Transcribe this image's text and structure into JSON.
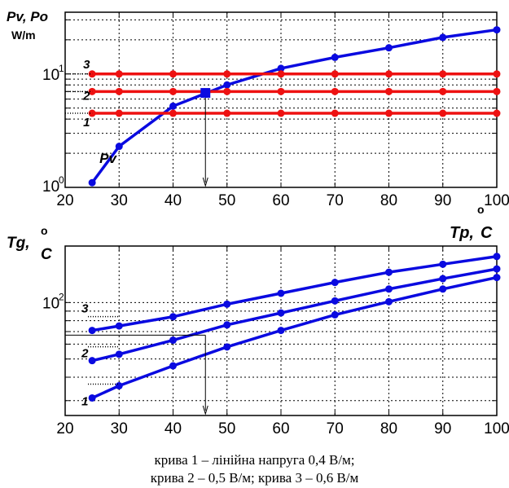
{
  "caption": {
    "line1": "крива 1 – лінійна напруга 0,4 В/м;",
    "line2": "крива 2 – 0,5 В/м; крива 3 – 0,6 В/м"
  },
  "colors": {
    "red": "#ee1111",
    "blue": "#0a0ae0",
    "axis": "#000000",
    "grid": "#000000"
  },
  "chart_data": [
    {
      "type": "line",
      "ylabel": "Pv, Po",
      "yunit": "W/m",
      "xlabel": "Tp, °C",
      "xlabel_main": "Tp,",
      "xlabel_unit": "C",
      "yscale": "log",
      "xlim": [
        20,
        100
      ],
      "ylim": [
        1,
        35
      ],
      "x_ticks": [
        20,
        30,
        40,
        50,
        60,
        70,
        80,
        90,
        100
      ],
      "y_tick_labels": [
        {
          "base": "10",
          "exp": "0",
          "value": 1
        },
        {
          "base": "10",
          "exp": "1",
          "value": 10
        }
      ],
      "grid": true,
      "series": [
        {
          "name": "Pv",
          "color": "#0a0ae0",
          "x": [
            25,
            30,
            40,
            50,
            60,
            70,
            80,
            90,
            100
          ],
          "y": [
            1.1,
            2.3,
            5.2,
            8.0,
            11.2,
            14.0,
            17.0,
            21.0,
            24.5
          ]
        },
        {
          "name": "1",
          "color": "#ee1111",
          "x": [
            25,
            30,
            40,
            50,
            60,
            70,
            80,
            90,
            100
          ],
          "y": [
            4.5,
            4.5,
            4.5,
            4.5,
            4.5,
            4.5,
            4.5,
            4.5,
            4.5
          ]
        },
        {
          "name": "2",
          "color": "#ee1111",
          "x": [
            25,
            30,
            40,
            50,
            60,
            70,
            80,
            90,
            100
          ],
          "y": [
            7.0,
            7.0,
            7.0,
            7.0,
            7.0,
            7.0,
            7.0,
            7.0,
            7.0
          ]
        },
        {
          "name": "3",
          "color": "#ee1111",
          "x": [
            25,
            30,
            40,
            50,
            60,
            70,
            80,
            90,
            100
          ],
          "y": [
            10.0,
            10.0,
            10.0,
            10.0,
            10.0,
            10.0,
            10.0,
            10.0,
            10.0
          ]
        }
      ],
      "marker": {
        "x": 46,
        "y": 6.8
      },
      "annotations": [
        "Pv",
        "1",
        "2",
        "3"
      ]
    },
    {
      "type": "line",
      "ylabel": "Tg,",
      "ylabel_unit": "C",
      "yscale": "log",
      "xlim": [
        20,
        100
      ],
      "ylim": [
        25,
        200
      ],
      "x_ticks": [
        20,
        30,
        40,
        50,
        60,
        70,
        80,
        90,
        100
      ],
      "y_tick_labels": [
        {
          "base": "10",
          "exp": "2",
          "value": 100
        }
      ],
      "grid": true,
      "series": [
        {
          "name": "1",
          "color": "#0a0ae0",
          "x": [
            25,
            30,
            40,
            50,
            60,
            70,
            80,
            90,
            100
          ],
          "y": [
            31,
            36,
            46,
            58,
            71,
            86,
            101,
            118,
            136
          ]
        },
        {
          "name": "2",
          "color": "#0a0ae0",
          "x": [
            25,
            30,
            40,
            50,
            60,
            70,
            80,
            90,
            100
          ],
          "y": [
            49,
            53,
            63,
            76,
            88,
            102,
            118,
            134,
            151
          ]
        },
        {
          "name": "3",
          "color": "#0a0ae0",
          "x": [
            25,
            30,
            40,
            50,
            60,
            70,
            80,
            90,
            100
          ],
          "y": [
            71,
            75,
            84,
            98,
            112,
            128,
            145,
            160,
            176
          ]
        }
      ],
      "reference_x": 46,
      "reference_y": 67,
      "annotations": [
        "1",
        "2",
        "3"
      ]
    }
  ]
}
